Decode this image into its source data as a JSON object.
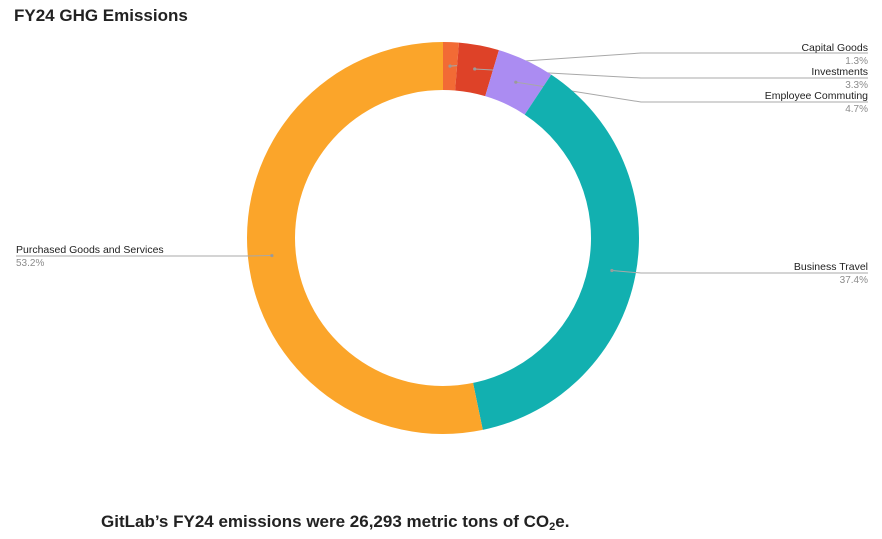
{
  "chart_data": {
    "type": "pie",
    "title": "FY24 GHG Emissions",
    "donut": true,
    "categories": [
      "Capital Goods",
      "Investments",
      "Employee Commuting",
      "Business Travel",
      "Purchased Goods and Services"
    ],
    "values": [
      1.3,
      3.3,
      4.7,
      37.4,
      53.2
    ],
    "value_labels": [
      "1.3%",
      "3.3%",
      "4.7%",
      "37.4%",
      "53.2%"
    ],
    "colors": [
      "#f26b35",
      "#de4228",
      "#ab8cf2",
      "#12b0b0",
      "#fba52a"
    ]
  },
  "caption": {
    "prefix": "GitLab’s FY24 emissions were 26,293 metric tons of CO",
    "subscript": "2",
    "suffix": "e."
  }
}
